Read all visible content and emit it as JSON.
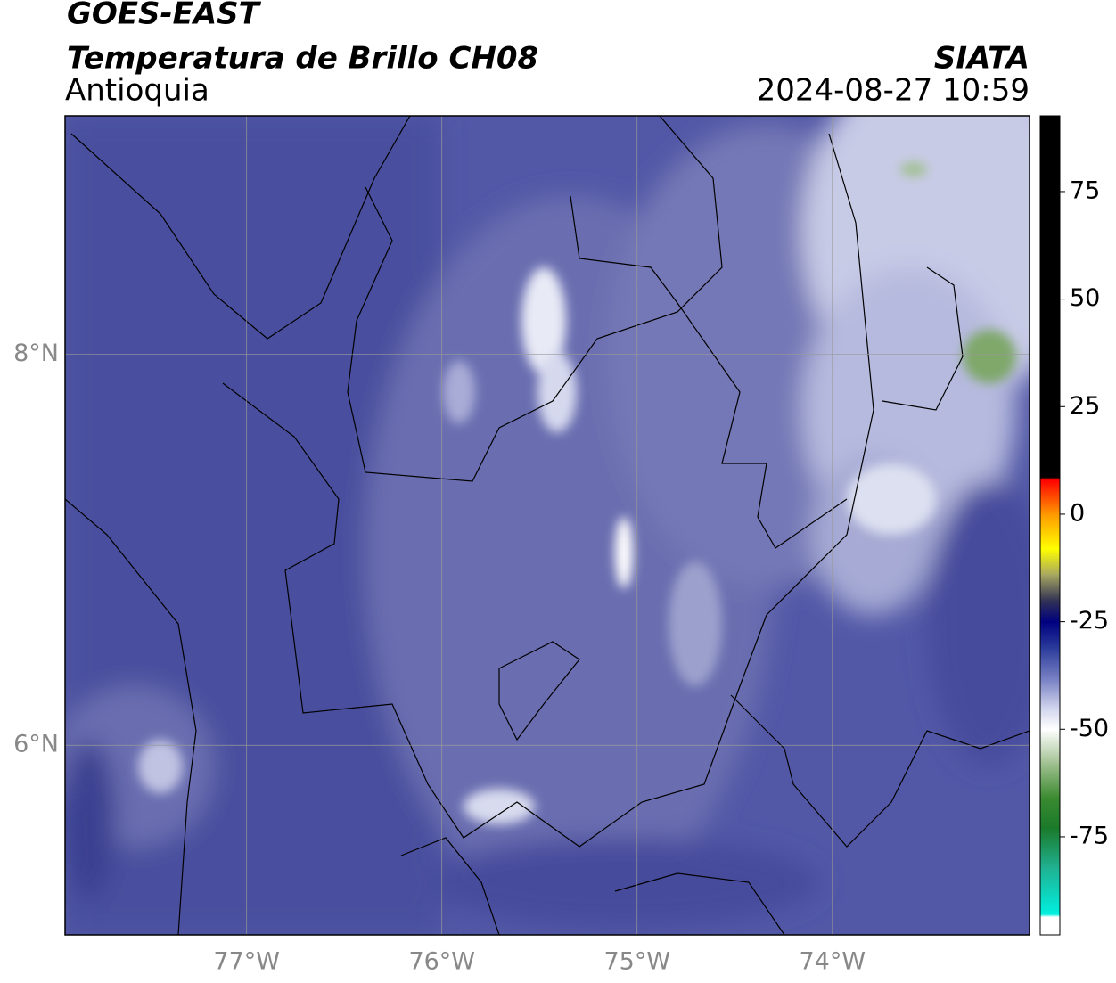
{
  "header": {
    "title": "GOES-EAST",
    "subtitle": "Temperatura de Brillo CH08",
    "region": "Antioquia",
    "source": "SIATA",
    "datetime": "2024-08-27 10:59"
  },
  "map": {
    "xlim": [
      -77.93,
      -72.99
    ],
    "ylim": [
      5.03,
      9.22
    ],
    "xticks": [
      {
        "value": -77,
        "label": "77°W"
      },
      {
        "value": -76,
        "label": "76°W"
      },
      {
        "value": -75,
        "label": "75°W"
      },
      {
        "value": -74,
        "label": "74°W"
      }
    ],
    "yticks": [
      {
        "value": 6,
        "label": "6°N"
      },
      {
        "value": 8,
        "label": "8°N"
      }
    ],
    "grid": true
  },
  "colorbar": {
    "lim": [
      -97.8,
      92.6
    ],
    "ticks": [
      75,
      50,
      25,
      0,
      -25,
      -50,
      -75
    ],
    "stops": [
      {
        "value": 92.6,
        "color": "#000000"
      },
      {
        "value": 8.6,
        "color": "#000000"
      },
      {
        "value": 8,
        "color": "#ff0000"
      },
      {
        "value": 0,
        "color": "#ff9900"
      },
      {
        "value": -8,
        "color": "#ffff00"
      },
      {
        "value": -14,
        "color": "#a8a860"
      },
      {
        "value": -20,
        "color": "#333355"
      },
      {
        "value": -25,
        "color": "#000080"
      },
      {
        "value": -31,
        "color": "#2a3a9a"
      },
      {
        "value": -39,
        "color": "#8088c8"
      },
      {
        "value": -45,
        "color": "#d0d4ec"
      },
      {
        "value": -50,
        "color": "#ffffff"
      },
      {
        "value": -58,
        "color": "#a0c090"
      },
      {
        "value": -66,
        "color": "#3a8a30"
      },
      {
        "value": -73,
        "color": "#1a7a2a"
      },
      {
        "value": -82,
        "color": "#20b090"
      },
      {
        "value": -93,
        "color": "#00f0e0"
      },
      {
        "value": -93.6,
        "color": "#ffffff"
      },
      {
        "value": -97.8,
        "color": "#ffffff"
      }
    ]
  }
}
